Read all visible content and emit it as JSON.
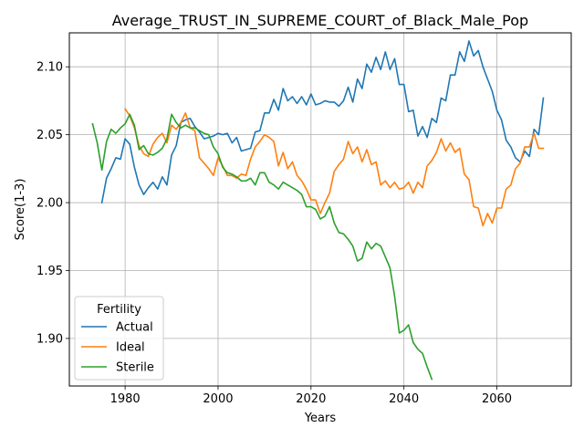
{
  "chart_data": {
    "type": "line",
    "title": "Average_TRUST_IN_SUPREME_COURT_of_Black_Male_Pop",
    "xlabel": "Years",
    "ylabel": "Score(1-3)",
    "xlim": [
      1968,
      2076
    ],
    "ylim": [
      1.865,
      2.125
    ],
    "xticks": [
      1980,
      2000,
      2020,
      2040,
      2060
    ],
    "yticks": [
      1.9,
      1.95,
      2.0,
      2.05,
      2.1
    ],
    "xtick_labels": [
      "1980",
      "2000",
      "2020",
      "2040",
      "2060"
    ],
    "ytick_labels": [
      "1.90",
      "1.95",
      "2.00",
      "2.05",
      "2.10"
    ],
    "grid": true,
    "legend": {
      "title": "Fertility",
      "position": "lower-left"
    },
    "series": [
      {
        "name": "Actual",
        "color": "#1f77b4",
        "x": [
          1975,
          1976,
          1977,
          1978,
          1979,
          1980,
          1981,
          1982,
          1983,
          1984,
          1985,
          1986,
          1987,
          1988,
          1989,
          1990,
          1991,
          1992,
          1993,
          1994,
          1995,
          1996,
          1997,
          1998,
          1999,
          2000,
          2001,
          2002,
          2003,
          2004,
          2005,
          2006,
          2007,
          2008,
          2009,
          2010,
          2011,
          2012,
          2013,
          2014,
          2015,
          2016,
          2017,
          2018,
          2019,
          2020,
          2021,
          2022,
          2023,
          2024,
          2025,
          2026,
          2027,
          2028,
          2029,
          2030,
          2031,
          2032,
          2033,
          2034,
          2035,
          2036,
          2037,
          2038,
          2039,
          2040,
          2041,
          2042,
          2043,
          2044,
          2045,
          2046,
          2047,
          2048,
          2049,
          2050,
          2051,
          2052,
          2053,
          2054,
          2055,
          2056,
          2057,
          2058,
          2059,
          2060,
          2061,
          2062,
          2063,
          2064,
          2065,
          2066,
          2067,
          2068,
          2069,
          2070
        ],
        "values": [
          2.0,
          2.018,
          2.025,
          2.033,
          2.032,
          2.047,
          2.043,
          2.026,
          2.013,
          2.006,
          2.011,
          2.015,
          2.01,
          2.019,
          2.013,
          2.035,
          2.042,
          2.059,
          2.061,
          2.062,
          2.056,
          2.052,
          2.047,
          2.048,
          2.049,
          2.051,
          2.05,
          2.051,
          2.044,
          2.048,
          2.038,
          2.039,
          2.04,
          2.052,
          2.053,
          2.066,
          2.066,
          2.076,
          2.068,
          2.084,
          2.075,
          2.078,
          2.073,
          2.078,
          2.072,
          2.08,
          2.072,
          2.073,
          2.075,
          2.074,
          2.074,
          2.071,
          2.075,
          2.085,
          2.074,
          2.091,
          2.084,
          2.102,
          2.096,
          2.107,
          2.098,
          2.111,
          2.098,
          2.106,
          2.087,
          2.087,
          2.067,
          2.068,
          2.049,
          2.056,
          2.048,
          2.062,
          2.059,
          2.077,
          2.075,
          2.094,
          2.094,
          2.111,
          2.104,
          2.119,
          2.108,
          2.112,
          2.1,
          2.091,
          2.082,
          2.068,
          2.061,
          2.046,
          2.041,
          2.033,
          2.03,
          2.038,
          2.034,
          2.054,
          2.05,
          2.077
        ]
      },
      {
        "name": "Ideal",
        "color": "#ff7f0e",
        "x": [
          1980,
          1981,
          1982,
          1983,
          1984,
          1985,
          1986,
          1987,
          1988,
          1989,
          1990,
          1991,
          1992,
          1993,
          1994,
          1995,
          1996,
          1997,
          1998,
          1999,
          2000,
          2001,
          2002,
          2003,
          2004,
          2005,
          2006,
          2007,
          2008,
          2009,
          2010,
          2011,
          2012,
          2013,
          2014,
          2015,
          2016,
          2017,
          2018,
          2019,
          2020,
          2021,
          2022,
          2023,
          2024,
          2025,
          2026,
          2027,
          2028,
          2029,
          2030,
          2031,
          2032,
          2033,
          2034,
          2035,
          2036,
          2037,
          2038,
          2039,
          2040,
          2041,
          2042,
          2043,
          2044,
          2045,
          2046,
          2047,
          2048,
          2049,
          2050,
          2051,
          2052,
          2053,
          2054,
          2055,
          2056,
          2057,
          2058,
          2059,
          2060,
          2061,
          2062,
          2063,
          2064,
          2065,
          2066,
          2067,
          2068,
          2069,
          2070
        ],
        "values": [
          2.069,
          2.064,
          2.055,
          2.042,
          2.036,
          2.034,
          2.043,
          2.048,
          2.051,
          2.044,
          2.057,
          2.054,
          2.059,
          2.066,
          2.055,
          2.053,
          2.033,
          2.029,
          2.025,
          2.02,
          2.033,
          2.027,
          2.02,
          2.02,
          2.018,
          2.021,
          2.02,
          2.032,
          2.041,
          2.045,
          2.05,
          2.048,
          2.045,
          2.027,
          2.037,
          2.025,
          2.03,
          2.02,
          2.016,
          2.01,
          2.002,
          2.002,
          1.992,
          2.0,
          2.007,
          2.023,
          2.028,
          2.032,
          2.045,
          2.036,
          2.041,
          2.03,
          2.039,
          2.028,
          2.03,
          2.013,
          2.016,
          2.011,
          2.015,
          2.01,
          2.011,
          2.015,
          2.007,
          2.015,
          2.011,
          2.027,
          2.031,
          2.037,
          2.047,
          2.038,
          2.044,
          2.037,
          2.04,
          2.021,
          2.017,
          1.997,
          1.996,
          1.983,
          1.992,
          1.985,
          1.996,
          1.996,
          2.01,
          2.013,
          2.025,
          2.029,
          2.041,
          2.041,
          2.051,
          2.04,
          2.04
        ]
      },
      {
        "name": "Sterile",
        "color": "#2ca02c",
        "x": [
          1973,
          1974,
          1975,
          1976,
          1977,
          1978,
          1979,
          1980,
          1981,
          1982,
          1983,
          1984,
          1985,
          1986,
          1987,
          1988,
          1989,
          1990,
          1991,
          1992,
          1993,
          1994,
          1995,
          1996,
          1997,
          1998,
          1999,
          2000,
          2001,
          2002,
          2003,
          2004,
          2005,
          2006,
          2007,
          2008,
          2009,
          2010,
          2011,
          2012,
          2013,
          2014,
          2015,
          2016,
          2017,
          2018,
          2019,
          2020,
          2021,
          2022,
          2023,
          2024,
          2025,
          2026,
          2027,
          2028,
          2029,
          2030,
          2031,
          2032,
          2033,
          2034,
          2035,
          2036,
          2037,
          2038,
          2039,
          2040,
          2041,
          2042,
          2043,
          2044,
          2045,
          2046
        ],
        "values": [
          2.058,
          2.044,
          2.024,
          2.045,
          2.054,
          2.051,
          2.055,
          2.058,
          2.065,
          2.057,
          2.039,
          2.042,
          2.036,
          2.035,
          2.037,
          2.04,
          2.047,
          2.065,
          2.059,
          2.055,
          2.057,
          2.055,
          2.055,
          2.053,
          2.051,
          2.05,
          2.041,
          2.036,
          2.026,
          2.022,
          2.021,
          2.019,
          2.016,
          2.016,
          2.018,
          2.013,
          2.022,
          2.022,
          2.015,
          2.013,
          2.01,
          2.015,
          2.013,
          2.011,
          2.009,
          2.006,
          1.997,
          1.997,
          1.995,
          1.988,
          1.99,
          1.997,
          1.985,
          1.978,
          1.977,
          1.973,
          1.968,
          1.957,
          1.959,
          1.971,
          1.966,
          1.97,
          1.968,
          1.96,
          1.952,
          1.931,
          1.904,
          1.906,
          1.91,
          1.897,
          1.892,
          1.889,
          1.879,
          1.87
        ]
      }
    ]
  }
}
